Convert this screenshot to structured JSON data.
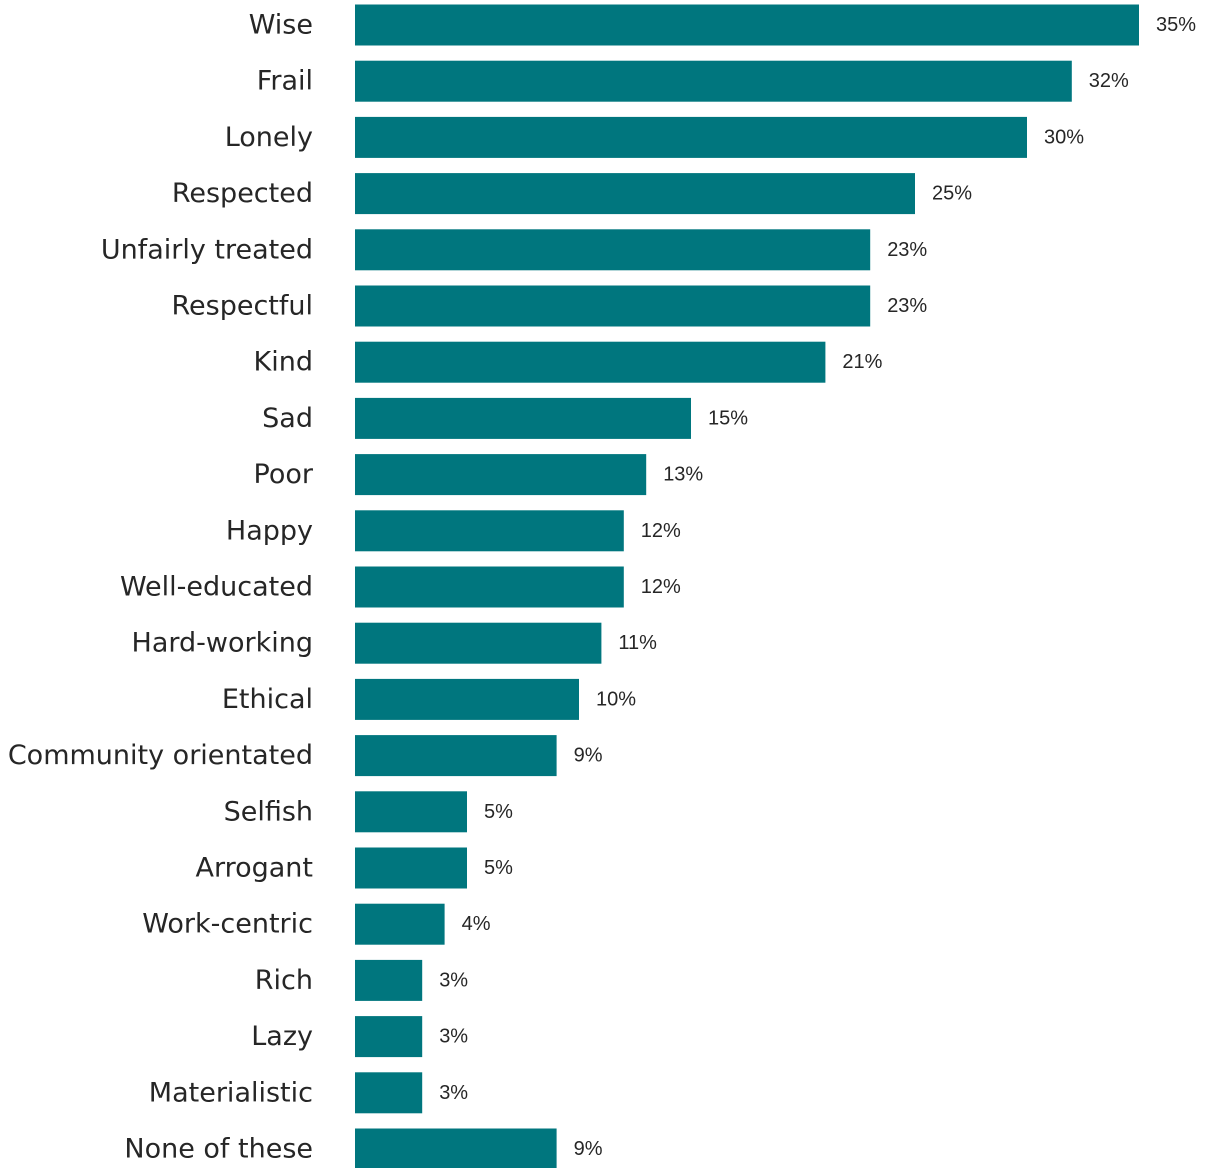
{
  "chart_data": {
    "type": "bar",
    "orientation": "horizontal",
    "title": "",
    "xlabel": "",
    "ylabel": "",
    "grid": false,
    "legend": "none",
    "bar_color": "#00767E",
    "value_suffix": "%",
    "xlim": [
      0,
      35
    ],
    "categories": [
      "Wise",
      "Frail",
      "Lonely",
      "Respected",
      "Unfairly treated",
      "Respectful",
      "Kind",
      "Sad",
      "Poor",
      "Happy",
      "Well-educated",
      "Hard-working",
      "Ethical",
      "Community orientated",
      "Selfish",
      "Arrogant",
      "Work-centric",
      "Rich",
      "Lazy",
      "Materialistic",
      "None of these"
    ],
    "values": [
      35,
      32,
      30,
      25,
      23,
      23,
      21,
      15,
      13,
      12,
      12,
      11,
      10,
      9,
      5,
      5,
      4,
      3,
      3,
      3,
      9
    ],
    "value_labels": [
      "35%",
      "32%",
      "30%",
      "25%",
      "23%",
      "23%",
      "21%",
      "15%",
      "13%",
      "12%",
      "12%",
      "11%",
      "10%",
      "9%",
      "5%",
      "5%",
      "4%",
      "3%",
      "3%",
      "3%",
      "9%"
    ]
  }
}
